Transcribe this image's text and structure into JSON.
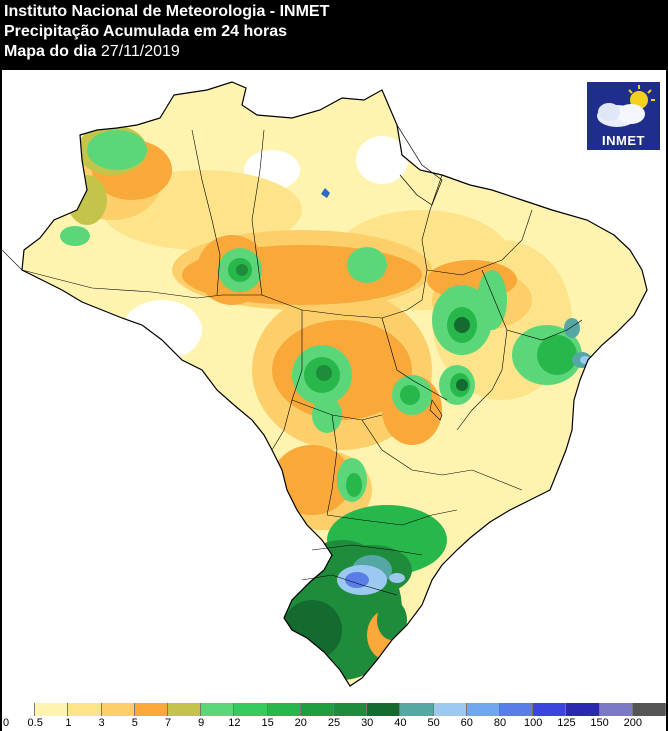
{
  "header": {
    "line1": "Instituto Nacional de Meteorologia - INMET",
    "line2": "Precipitação Acumulada em 24 horas",
    "line3_label": "Mapa do dia",
    "line3_date": "27/11/2019"
  },
  "logo": {
    "text": "INMET",
    "icon": "cloud-sun-icon"
  },
  "colors": {
    "white": "#ffffff",
    "pale": "#fff3b0",
    "light_yellow": "#fde48b",
    "yellow_orange": "#fccf6a",
    "orange": "#f9a83a",
    "olive": "#c4c44a",
    "light_green": "#5bd77a",
    "green": "#28b74a",
    "dark_green": "#1e8c3a",
    "deep_green": "#146b30",
    "teal": "#55a7a4",
    "light_blue": "#9cc9ef",
    "blue": "#5a7ee8",
    "border": "#000000"
  },
  "legend": {
    "swatches": [
      "#ffffff",
      "#fff3b0",
      "#fde48b",
      "#fccf6a",
      "#f9a83a",
      "#c4c44a",
      "#5bd77a",
      "#37c95c",
      "#28b74a",
      "#1e9e3e",
      "#1e8c3a",
      "#146b30",
      "#55a7a4",
      "#9cc9ef",
      "#6fa8ee",
      "#5a7ee8",
      "#3a45e0",
      "#2a2ab0",
      "#7a7ac4",
      "#555555"
    ],
    "labels": [
      "0",
      "0.5",
      "1",
      "3",
      "5",
      "7",
      "9",
      "12",
      "15",
      "20",
      "25",
      "30",
      "40",
      "50",
      "60",
      "80",
      "100",
      "125",
      "150",
      "200"
    ]
  }
}
